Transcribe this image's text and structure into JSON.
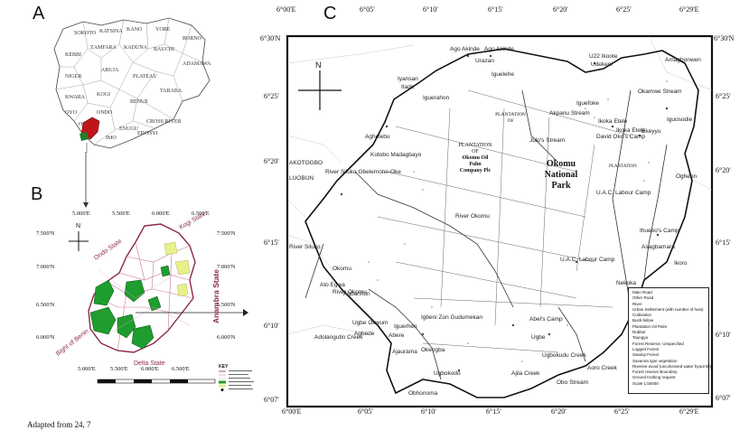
{
  "panels": {
    "a": "A",
    "b": "B",
    "c": "C"
  },
  "caption": "Adapted from 24, 7",
  "panel_b": {
    "north": "N",
    "top_lon": [
      "5.000'E",
      "5.500'E",
      "6.000'E",
      "6.500'E"
    ],
    "bottom_lon": [
      "5.000'E",
      "5.500'E",
      "6.000'E",
      "6.500'E"
    ],
    "left_lat": [
      "7.500'N",
      "7.000'N",
      "6.500'N",
      "6.000'N"
    ],
    "right_lat": [
      "7.500'N",
      "7.000'N",
      "6.500'N",
      "6.000'N"
    ],
    "states": {
      "ondo": "Ondo State",
      "kogi": "Kogi State",
      "anambra": "Anambra State",
      "delta": "Delta State",
      "bight": "Bight of Benin"
    },
    "key_title": "KEY",
    "colors": {
      "forest": "#1f9d2e",
      "boundary": "#8b2a45",
      "yellow": "#e8f08a"
    }
  },
  "panel_c": {
    "north": "N",
    "top_lon": [
      "6°00'E",
      "6°05'",
      "6°10'",
      "6°15'",
      "6°20'",
      "6°25'",
      "6°29'E"
    ],
    "bottom_lon": [
      "6°00'E",
      "6°05'",
      "6°10'",
      "6°15'",
      "6°20'",
      "6°25'",
      "6°29'E"
    ],
    "left_lat": [
      "6°30'N",
      "6°25'",
      "6°20'",
      "6°15'",
      "6°10'",
      "6°07'"
    ],
    "right_lat": [
      "6°30'N",
      "6°25'",
      "6°20'",
      "6°15'",
      "6°10'",
      "6°07'"
    ],
    "park_name": [
      "Okomu",
      "National",
      "Park"
    ],
    "plantation_okomu": [
      "PLANTATION",
      "OF",
      "Okomu Oil",
      "Palm",
      "Company Plc"
    ],
    "plantation_of": [
      "PLANTATION",
      "OF"
    ],
    "plantation_right": "PLANTATION",
    "place_labels": [
      "Ago Akinde",
      "Ago Akinde",
      "Urazan",
      "Iguelehe",
      "U22 Ikoote",
      "Udekeni",
      "Amagbonwen",
      "Iyansan",
      "Itade",
      "Iguerahon",
      "Iguefoke",
      "Ikoka Etele",
      "Ikoka Etele",
      "David Oko's Camp",
      "Iguosodie",
      "Aghelebu",
      "Kotobo Madagbayo",
      "AKOTOGBO",
      "LUOBUN",
      "River Siluko Gbelemotei-Oke",
      "Julo's Stream",
      "U.A.C. Labour Camp",
      "Ihuebo's Camp",
      "Asagbamara",
      "U.A.C. Labour Camp",
      "Okomu",
      "River Okomu",
      "Ato Egwa",
      "Agbanhon",
      "Ugbe Okwum",
      "Iguerhen",
      "Abere",
      "Igbeni Zon Gudumekan",
      "Abel's Camp",
      "Agbede",
      "Okeogba",
      "Ajaurama",
      "Ugbokodo",
      "Ajila Creek",
      "Aoro Creek",
      "Nekoka",
      "Ikoro",
      "Obhonoma",
      "River Okomu",
      "Adolangutin Creek",
      "River Siluko",
      "Ugbe",
      "Ugbokudu Creek",
      "Obo Stream",
      "Ogheon",
      "Okamwe Stream",
      "Akpanu Stream",
      "Ekeyyu"
    ],
    "key_items": [
      "Main Road",
      "Other Road",
      "River",
      "Urban Settlement (with number of huts)",
      "Cultivation",
      "Bush-fallow",
      "Plantation Oil Palm",
      "Rubber",
      "Taungya",
      "Forest Reserve, Unspecified",
      "Logged Forest",
      "Swamp Forest",
      "Savanna type vegetation",
      "Riverine wood (uncolonised water hyacinth)",
      "Forest reserve Boundary",
      "Ground truthing request",
      "Scale 1:50000"
    ]
  }
}
